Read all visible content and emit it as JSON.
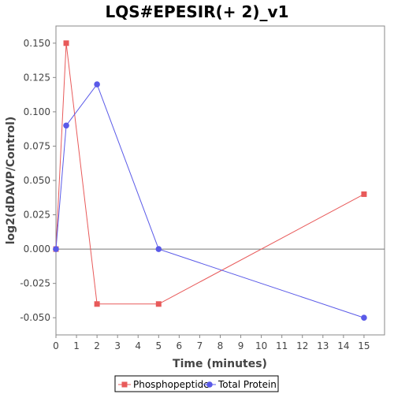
{
  "chart_data": {
    "type": "line",
    "title": "LQS#EPESIR(+ 2)_v1",
    "xlabel": "Time (minutes)",
    "ylabel": "log2(dDAVP/Control)",
    "xlim": [
      0,
      16
    ],
    "ylim": [
      -0.0625,
      0.1625
    ],
    "x_ticks": [
      0,
      1,
      2,
      3,
      4,
      5,
      6,
      7,
      8,
      9,
      10,
      11,
      12,
      13,
      14,
      15
    ],
    "y_ticks": [
      "-0.050",
      "-0.025",
      "0.000",
      "0.025",
      "0.050",
      "0.075",
      "0.100",
      "0.125",
      "0.150"
    ],
    "grid": false,
    "legend_position": "bottom",
    "series": [
      {
        "name": "Phosphopeptide",
        "color": "#e85a5a",
        "marker": "square",
        "x": [
          0,
          0.5,
          2,
          5,
          15
        ],
        "y": [
          0.0,
          0.15,
          -0.04,
          -0.04,
          0.04
        ]
      },
      {
        "name": "Total Protein",
        "color": "#5a5ae8",
        "marker": "circle",
        "x": [
          0,
          0.5,
          2,
          5,
          15
        ],
        "y": [
          0.0,
          0.09,
          0.12,
          0.0,
          -0.05
        ]
      }
    ]
  }
}
